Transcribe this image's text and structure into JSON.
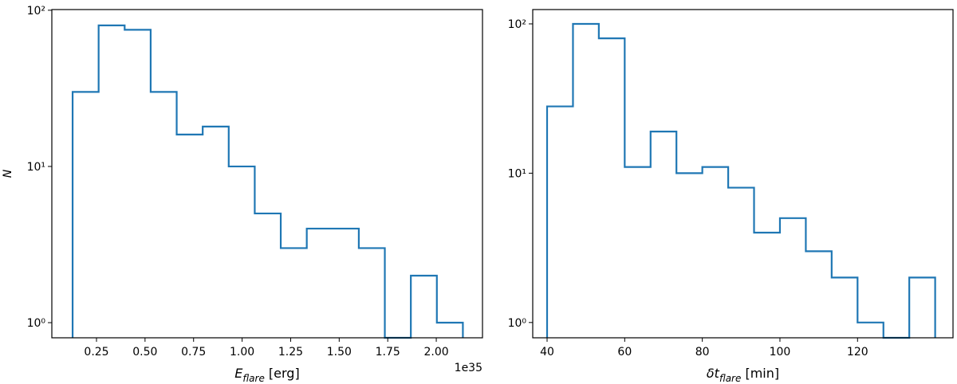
{
  "chart_data": [
    {
      "type": "histogram",
      "color": "#1f77b4",
      "log_y": true,
      "bins": [
        0.127,
        0.261,
        0.395,
        0.529,
        0.663,
        0.797,
        0.931,
        1.065,
        1.199,
        1.333,
        1.467,
        1.601,
        1.735,
        1.869,
        2.003,
        2.137
      ],
      "values": [
        30,
        80,
        75,
        30,
        16,
        18,
        10,
        5,
        3,
        4,
        4,
        3,
        0,
        2,
        1
      ],
      "xlim": [
        0.02,
        2.238
      ],
      "ylim": [
        0.8,
        101
      ],
      "xticks": [
        0.25,
        {
          "value": 0.5,
          "label": "0.50"
        },
        0.75,
        {
          "value": 1,
          "label": "1.00"
        },
        1.25,
        {
          "value": 1.5,
          "label": "1.50"
        },
        1.75,
        {
          "value": 2,
          "label": "2.00"
        }
      ],
      "yticks": [
        {
          "value": 1,
          "label": "10⁰"
        },
        {
          "value": 10,
          "label": "10¹"
        },
        {
          "value": 100,
          "label": "10²"
        }
      ],
      "x_offset_label": "1e35",
      "xlabel": {
        "main": "E",
        "sub": "flare",
        "rest": " [erg]"
      },
      "ylabel": "N"
    },
    {
      "type": "histogram",
      "color": "#1f77b4",
      "log_y": true,
      "bins": [
        40,
        46.67,
        53.33,
        60,
        66.67,
        73.33,
        80,
        86.67,
        93.33,
        100,
        106.67,
        113.33,
        120,
        126.67,
        133.33,
        140
      ],
      "values": [
        28,
        100,
        80,
        11,
        19,
        10,
        11,
        8,
        4,
        5,
        3,
        2,
        1,
        0,
        2
      ],
      "xlim": [
        36.3,
        144.6
      ],
      "ylim": [
        0.79,
        124.7
      ],
      "xticks": [
        40,
        60,
        80,
        100,
        120
      ],
      "yticks": [
        {
          "value": 1,
          "label": "10⁰"
        },
        {
          "value": 10,
          "label": "10¹"
        },
        {
          "value": 100,
          "label": "10²"
        }
      ],
      "xlabel": {
        "main": "δt",
        "sub": "flare",
        "rest": " [min]"
      }
    }
  ]
}
